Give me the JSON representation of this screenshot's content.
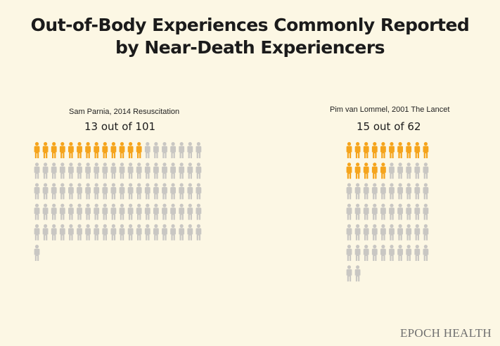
{
  "title_line1": "Out-of-Body Experiences Commonly Reported",
  "title_line2": "by Near-Death Experiencers",
  "credit": "EPOCH HEALTH",
  "colors": {
    "background": "#fcf7e4",
    "highlight": "#f5a41c",
    "base": "#c9c7c3"
  },
  "chart_data": [
    {
      "type": "pictograph",
      "source": "Sam Parnia, 2014 Resuscitation",
      "label": "13 out of 101",
      "highlighted": 13,
      "total": 101,
      "columns": 20
    },
    {
      "type": "pictograph",
      "source": "Pim van Lommel, 2001 The Lancet",
      "label": "15 out of 62",
      "highlighted": 15,
      "total": 62,
      "columns": 10
    }
  ]
}
